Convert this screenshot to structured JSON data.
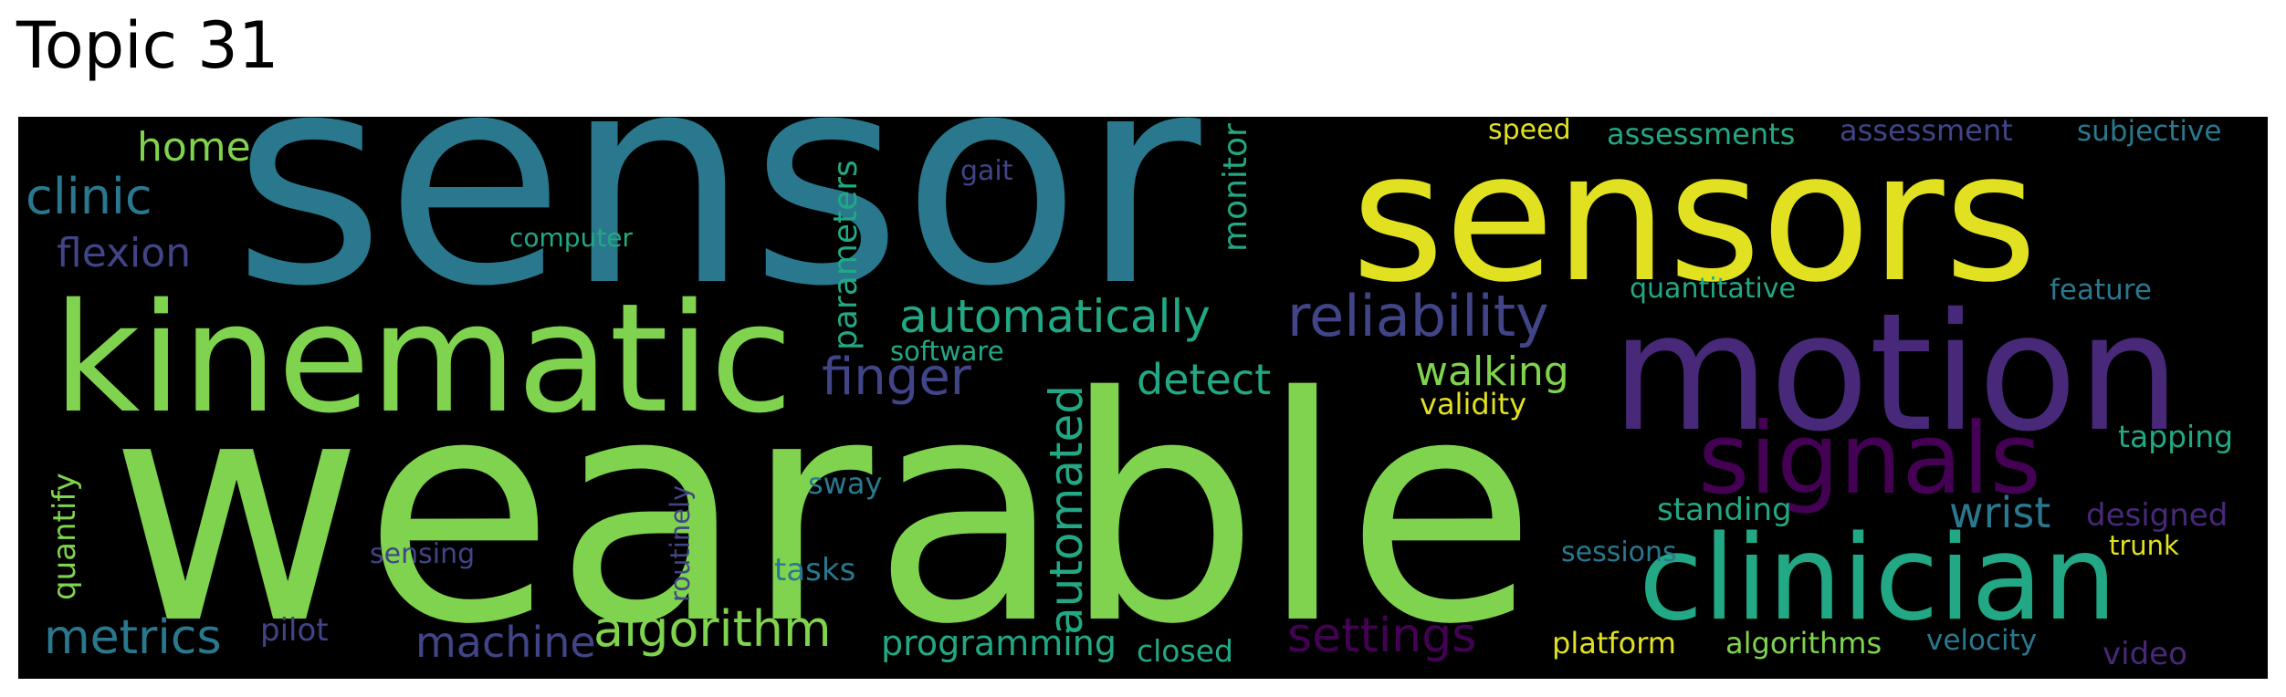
{
  "title": "Topic 31",
  "colors": {
    "background": "#000000",
    "yellow": "#e1e122",
    "green": "#7fd34e",
    "teal": "#22a884",
    "tealblue": "#2a788e",
    "blue": "#414487",
    "purple": "#482878",
    "darkpurple": "#440154"
  },
  "words": [
    {
      "text": "sensor",
      "color": "tealblue"
    },
    {
      "text": "sensors",
      "color": "yellow"
    },
    {
      "text": "wearable",
      "color": "green"
    },
    {
      "text": "kinematic",
      "color": "green"
    },
    {
      "text": "motion",
      "color": "purple"
    },
    {
      "text": "clinician",
      "color": "teal"
    },
    {
      "text": "signals",
      "color": "darkpurple"
    },
    {
      "text": "reliability",
      "color": "blue"
    },
    {
      "text": "automatically",
      "color": "teal"
    },
    {
      "text": "algorithm",
      "color": "green"
    },
    {
      "text": "automated",
      "color": "teal"
    },
    {
      "text": "finger",
      "color": "blue"
    },
    {
      "text": "settings",
      "color": "darkpurple"
    },
    {
      "text": "metrics",
      "color": "tealblue"
    },
    {
      "text": "detect",
      "color": "teal"
    },
    {
      "text": "walking",
      "color": "green"
    },
    {
      "text": "clinic",
      "color": "tealblue"
    },
    {
      "text": "machine",
      "color": "blue"
    },
    {
      "text": "wrist",
      "color": "tealblue"
    },
    {
      "text": "home",
      "color": "green"
    },
    {
      "text": "flexion",
      "color": "blue"
    },
    {
      "text": "programming",
      "color": "teal"
    },
    {
      "text": "parameters",
      "color": "teal"
    },
    {
      "text": "monitor",
      "color": "teal"
    },
    {
      "text": "quantify",
      "color": "green"
    },
    {
      "text": "standing",
      "color": "teal"
    },
    {
      "text": "pilot",
      "color": "blue"
    },
    {
      "text": "designed",
      "color": "purple"
    },
    {
      "text": "tasks",
      "color": "tealblue"
    },
    {
      "text": "video",
      "color": "purple"
    },
    {
      "text": "closed",
      "color": "teal"
    },
    {
      "text": "tapping",
      "color": "teal"
    },
    {
      "text": "validity",
      "color": "yellow"
    },
    {
      "text": "algorithms",
      "color": "green"
    },
    {
      "text": "assessments",
      "color": "teal"
    },
    {
      "text": "assessment",
      "color": "blue"
    },
    {
      "text": "subjective",
      "color": "tealblue"
    },
    {
      "text": "sway",
      "color": "tealblue"
    },
    {
      "text": "platform",
      "color": "yellow"
    },
    {
      "text": "velocity",
      "color": "tealblue"
    },
    {
      "text": "feature",
      "color": "tealblue"
    },
    {
      "text": "sessions",
      "color": "tealblue"
    },
    {
      "text": "sensing",
      "color": "blue"
    },
    {
      "text": "quantitative",
      "color": "teal"
    },
    {
      "text": "routinely",
      "color": "blue"
    },
    {
      "text": "software",
      "color": "teal"
    },
    {
      "text": "trunk",
      "color": "yellow"
    },
    {
      "text": "speed",
      "color": "yellow"
    },
    {
      "text": "computer",
      "color": "teal"
    },
    {
      "text": "gait",
      "color": "blue"
    }
  ]
}
